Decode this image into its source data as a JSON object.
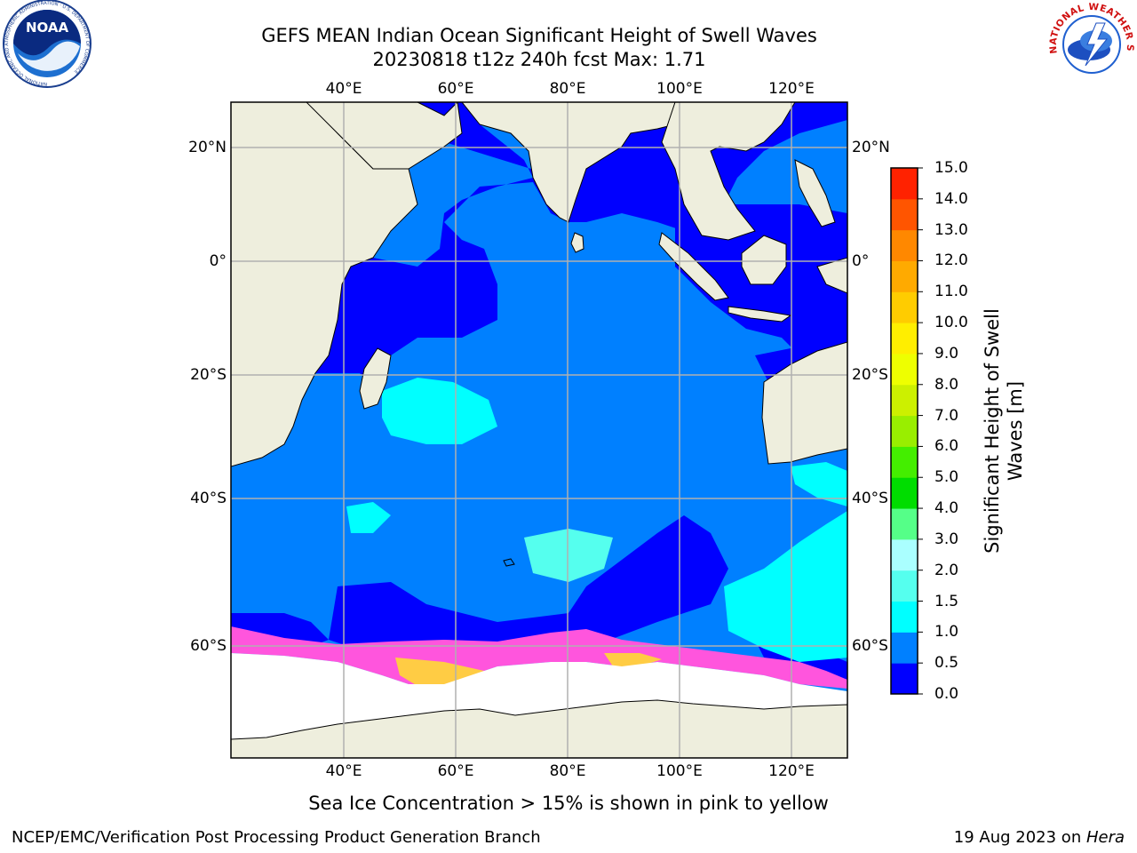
{
  "title": {
    "line1": "GEFS MEAN Indian Ocean Significant Height of Swell Waves",
    "line2": "20230818 t12z 240h fcst   Max: 1.71"
  },
  "map": {
    "lon_ticks": [
      "40°E",
      "60°E",
      "80°E",
      "100°E",
      "120°E"
    ],
    "lat_ticks_left": [
      "20°N",
      "0°",
      "20°S",
      "40°S",
      "60°S"
    ],
    "lat_ticks_right": [
      "20°N",
      "0°",
      "20°S",
      "40°S",
      "60°S"
    ],
    "colors": {
      "land": "#eeeedd",
      "ice": "#ffffff",
      "swell_0_05": "#0000ff",
      "swell_05_10": "#0080ff",
      "swell_10_15": "#00ffff",
      "swell_15_20": "#55ffee",
      "ice_edge_pink": "#ff55dd",
      "ice_edge_yellow": "#ffcc44",
      "grid": "#b0b0b0"
    }
  },
  "colorbar": {
    "label": "Significant Height of Swell Waves [m]",
    "label_line1": "Significant Height of Swell",
    "label_line2": "Waves [m]",
    "ticks": [
      "0.0",
      "0.5",
      "1.0",
      "1.5",
      "2.0",
      "3.0",
      "4.0",
      "5.0",
      "6.0",
      "7.0",
      "8.0",
      "9.0",
      "10.0",
      "11.0",
      "12.0",
      "13.0",
      "14.0",
      "15.0"
    ],
    "colors": [
      "#0000ff",
      "#0080ff",
      "#00ffff",
      "#55ffee",
      "#aaffff",
      "#55ff88",
      "#00dd00",
      "#44ee00",
      "#99ee00",
      "#ccf000",
      "#eeff00",
      "#ffee00",
      "#ffcc00",
      "#ffaa00",
      "#ff8800",
      "#ff5500",
      "#ff2200"
    ]
  },
  "note": "Sea Ice Concentration > 15% is shown in pink to yellow",
  "footer": {
    "left": "NCEP/EMC/Verification Post Processing Product Generation Branch",
    "right_date": "19 Aug 2023 on ",
    "right_host": "Hera"
  },
  "logos": {
    "noaa_text": "NOAA",
    "noaa_ring": "NATIONAL OCEANIC AND ATMOSPHERIC ADMINISTRATION · U.S. DEPARTMENT OF COMMERCE",
    "nws_ring": "NATIONAL WEATHER SERVICE"
  }
}
